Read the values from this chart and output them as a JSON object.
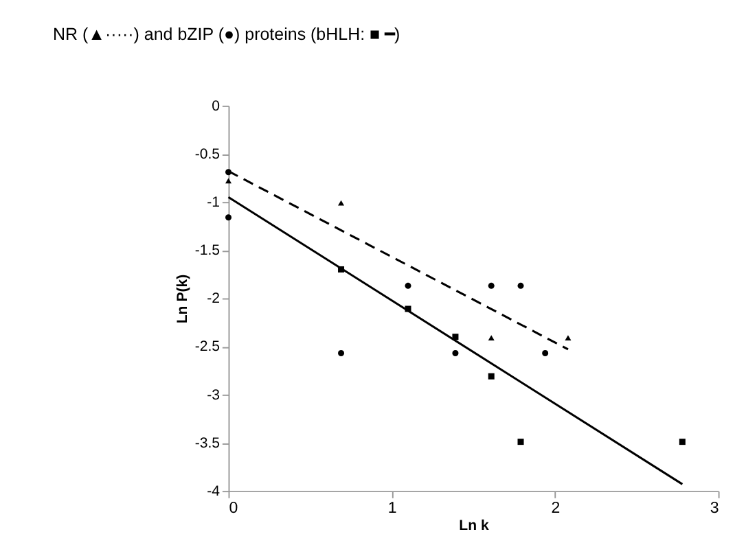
{
  "chart_data": {
    "type": "scatter",
    "title": "NR (▲·····) and bZIP (●) proteins (bHLH: ■ ━)",
    "xlabel": "Ln k",
    "ylabel": "Ln P(k)",
    "xlim": [
      0,
      3
    ],
    "xticks": [
      0,
      1,
      2,
      3
    ],
    "ylim": [
      -4,
      0
    ],
    "yticks": [
      -4,
      -3.5,
      -3,
      -2.5,
      -2,
      -1.5,
      -1,
      -0.5,
      0
    ],
    "grid": false,
    "series": [
      {
        "marker": "triangle",
        "color": "#000000",
        "x": [
          0,
          0.69,
          1.61,
          2.08
        ],
        "values": [
          -0.78,
          -1.01,
          -2.41,
          -2.41
        ]
      },
      {
        "marker": "circle",
        "color": "#000000",
        "x": [
          0,
          0,
          0.69,
          1.1,
          1.39,
          1.61,
          1.79,
          1.94
        ],
        "values": [
          -0.69,
          -1.16,
          -2.57,
          -1.87,
          -2.57,
          -1.87,
          -1.87,
          -2.57
        ]
      },
      {
        "marker": "square",
        "color": "#000000",
        "x": [
          0.69,
          1.1,
          1.39,
          1.61,
          1.79,
          2.78
        ],
        "values": [
          -1.7,
          -2.11,
          -2.4,
          -2.81,
          -3.49,
          -3.49
        ]
      },
      {
        "type": "line",
        "marker": "none",
        "line_style": "dashed",
        "color": "#000000",
        "x": [
          0,
          2.08
        ],
        "values": [
          -0.68,
          -2.53
        ]
      },
      {
        "type": "line",
        "marker": "none",
        "line_style": "solid",
        "color": "#000000",
        "x": [
          0,
          2.78
        ],
        "values": [
          -0.95,
          -3.93
        ]
      }
    ]
  }
}
